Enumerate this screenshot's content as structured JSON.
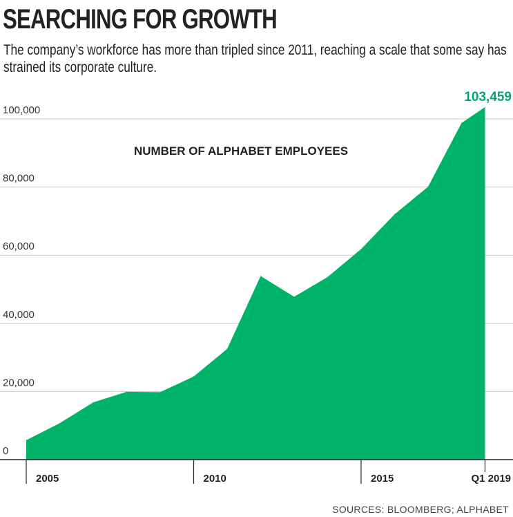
{
  "header": {
    "title": "SEARCHING FOR GROWTH",
    "subtitle": "The company’s workforce has more than tripled since 2011, reaching a scale that some say has strained its corporate culture."
  },
  "chart_data": {
    "type": "area",
    "title": "NUMBER OF ALPHABET EMPLOYEES",
    "xlabel": "",
    "ylabel": "",
    "ylim": [
      0,
      100000
    ],
    "yticks": [
      0,
      20000,
      40000,
      60000,
      80000,
      100000
    ],
    "ytick_labels": [
      "0",
      "20,000",
      "40,000",
      "60,000",
      "80,000",
      "100,000"
    ],
    "xticks": [
      2005,
      2010,
      2015,
      2018.7
    ],
    "xtick_labels": [
      "2005",
      "2010",
      "2015",
      "Q1 2019"
    ],
    "grid": true,
    "color": "#00b36b",
    "x": [
      2005,
      2006,
      2007,
      2008,
      2009,
      2010,
      2011,
      2012,
      2013,
      2014,
      2015,
      2016,
      2017,
      2018,
      2018.7
    ],
    "values": [
      5700,
      10700,
      16800,
      19900,
      19800,
      24400,
      32500,
      53900,
      47800,
      53600,
      61800,
      72000,
      80100,
      98800,
      103459
    ],
    "annotation": {
      "text": "103,459",
      "color": "#00a86b"
    }
  },
  "source": "SOURCES: BLOOMBERG; ALPHABET"
}
